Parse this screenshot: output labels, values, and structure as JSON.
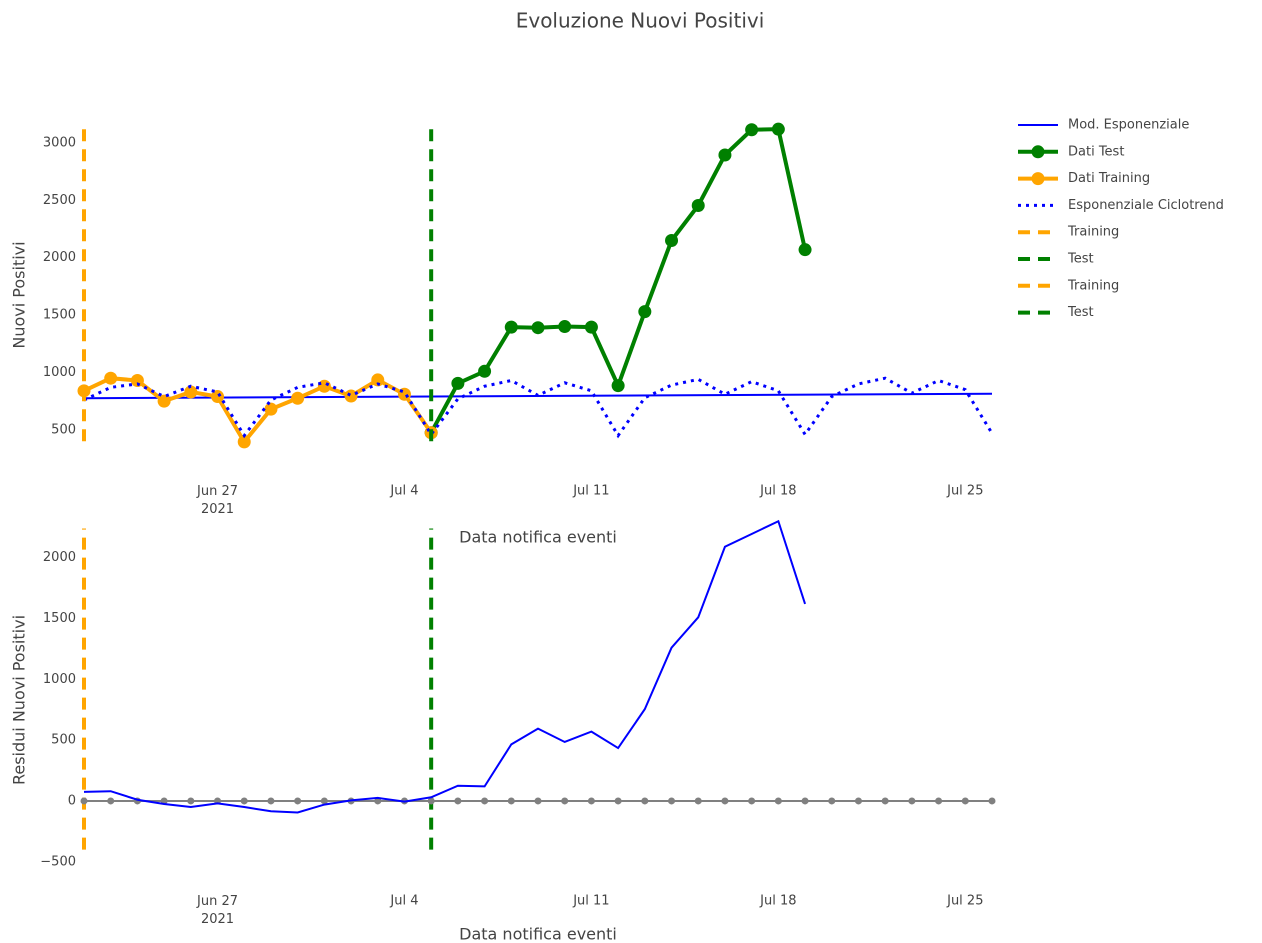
{
  "chart_data": [
    {
      "type": "line",
      "title": "Evoluzione Nuovi Positivi",
      "y_label": "Nuovi Positivi",
      "x_label": "Data notifica eventi",
      "xlim": [
        "2021-06-22",
        "2021-07-26"
      ],
      "xticks": [
        {
          "value": "2021-06-27",
          "label": "Jun 27\n2021"
        },
        {
          "value": "2021-07-04",
          "label": "Jul 4"
        },
        {
          "value": "2021-07-11",
          "label": "Jul 11"
        },
        {
          "value": "2021-07-18",
          "label": "Jul 18"
        },
        {
          "value": "2021-07-25",
          "label": "Jul 25"
        }
      ],
      "ylim": [
        150,
        3200
      ],
      "yticks": [
        500,
        1000,
        1500,
        2000,
        2500,
        3000
      ],
      "grid": false,
      "legend": "right",
      "series": [
        {
          "name": "Mod. Esponenziale",
          "color": "#0000ff",
          "mode": "lines",
          "dash": "solid",
          "x": [
            "2021-06-22",
            "2021-07-26"
          ],
          "values": [
            775,
            815
          ]
        },
        {
          "name": "Dati Test",
          "color": "#008000",
          "mode": "lines+markers",
          "dash": "solid",
          "x": [
            "2021-07-05",
            "2021-07-06",
            "2021-07-07",
            "2021-07-08",
            "2021-07-09",
            "2021-07-10",
            "2021-07-11",
            "2021-07-12",
            "2021-07-13",
            "2021-07-14",
            "2021-07-15",
            "2021-07-16",
            "2021-07-17",
            "2021-07-18",
            "2021-07-19"
          ],
          "values": [
            475,
            905,
            1010,
            1395,
            1390,
            1400,
            1395,
            885,
            1530,
            2150,
            2455,
            2895,
            3115,
            3120,
            2070
          ]
        },
        {
          "name": "Dati Training",
          "color": "#ffa500",
          "mode": "lines+markers",
          "dash": "solid",
          "x": [
            "2021-06-22",
            "2021-06-23",
            "2021-06-24",
            "2021-06-25",
            "2021-06-26",
            "2021-06-27",
            "2021-06-28",
            "2021-06-29",
            "2021-06-30",
            "2021-07-01",
            "2021-07-02",
            "2021-07-03",
            "2021-07-04",
            "2021-07-05"
          ],
          "values": [
            840,
            950,
            930,
            750,
            830,
            790,
            395,
            680,
            775,
            880,
            795,
            935,
            810,
            475
          ]
        },
        {
          "name": "Esponenziale Ciclotrend",
          "color": "#0000ff",
          "mode": "lines",
          "dash": "dot",
          "x": [
            "2021-06-22",
            "2021-06-23",
            "2021-06-24",
            "2021-06-25",
            "2021-06-26",
            "2021-06-27",
            "2021-06-28",
            "2021-06-29",
            "2021-06-30",
            "2021-07-01",
            "2021-07-02",
            "2021-07-03",
            "2021-07-04",
            "2021-07-05",
            "2021-07-06",
            "2021-07-07",
            "2021-07-08",
            "2021-07-09",
            "2021-07-10",
            "2021-07-11",
            "2021-07-12",
            "2021-07-13",
            "2021-07-14",
            "2021-07-15",
            "2021-07-16",
            "2021-07-17",
            "2021-07-18",
            "2021-07-19",
            "2021-07-20",
            "2021-07-21",
            "2021-07-22",
            "2021-07-23",
            "2021-07-24",
            "2021-07-25",
            "2021-07-26"
          ],
          "values": [
            760,
            870,
            900,
            790,
            880,
            830,
            450,
            760,
            870,
            910,
            800,
            900,
            830,
            460,
            770,
            880,
            930,
            800,
            910,
            840,
            450,
            780,
            890,
            940,
            810,
            920,
            840,
            460,
            790,
            900,
            950,
            820,
            930,
            850,
            470
          ]
        },
        {
          "name": "Training",
          "color": "#ffa500",
          "mode": "lines",
          "dash": "dash",
          "x": [
            "2021-06-22",
            "2021-06-22"
          ],
          "values": [
            400,
            3130
          ]
        },
        {
          "name": "Test",
          "color": "#008000",
          "mode": "lines",
          "dash": "dash",
          "x": [
            "2021-07-05",
            "2021-07-05"
          ],
          "values": [
            400,
            3130
          ]
        }
      ]
    },
    {
      "type": "line",
      "y_label": "Residui Nuovi Positivi",
      "x_label": "Data notifica eventi",
      "xlim": [
        "2021-06-22",
        "2021-07-26"
      ],
      "xticks": [
        {
          "value": "2021-06-27",
          "label": "Jun 27\n2021"
        },
        {
          "value": "2021-07-04",
          "label": "Jul 4"
        },
        {
          "value": "2021-07-11",
          "label": "Jul 11"
        },
        {
          "value": "2021-07-18",
          "label": "Jul 18"
        },
        {
          "value": "2021-07-25",
          "label": "Jul 25"
        }
      ],
      "ylim": [
        -650,
        2310
      ],
      "yticks": [
        {
          "value": -500,
          "label": "−500"
        },
        0,
        500,
        1000,
        1500,
        2000
      ],
      "grid": false,
      "series": [
        {
          "name": "Training",
          "color": "#ffa500",
          "mode": "lines",
          "dash": "dash",
          "x": [
            "2021-06-22",
            "2021-06-22"
          ],
          "values": [
            -400,
            2240
          ]
        },
        {
          "name": "Test",
          "color": "#008000",
          "mode": "lines",
          "dash": "dash",
          "x": [
            "2021-07-05",
            "2021-07-05"
          ],
          "values": [
            -400,
            2240
          ]
        },
        {
          "color": "#808080",
          "mode": "lines+markers",
          "dash": "solid",
          "x": [
            "2021-06-22",
            "2021-06-23",
            "2021-06-24",
            "2021-06-25",
            "2021-06-26",
            "2021-06-27",
            "2021-06-28",
            "2021-06-29",
            "2021-06-30",
            "2021-07-01",
            "2021-07-02",
            "2021-07-03",
            "2021-07-04",
            "2021-07-05",
            "2021-07-06",
            "2021-07-07",
            "2021-07-08",
            "2021-07-09",
            "2021-07-10",
            "2021-07-11",
            "2021-07-12",
            "2021-07-13",
            "2021-07-14",
            "2021-07-15",
            "2021-07-16",
            "2021-07-17",
            "2021-07-18",
            "2021-07-19",
            "2021-07-20",
            "2021-07-21",
            "2021-07-22",
            "2021-07-23",
            "2021-07-24",
            "2021-07-25",
            "2021-07-26"
          ],
          "values": [
            0,
            0,
            0,
            0,
            0,
            0,
            0,
            0,
            0,
            0,
            0,
            0,
            0,
            0,
            0,
            0,
            0,
            0,
            0,
            0,
            0,
            0,
            0,
            0,
            0,
            0,
            0,
            0,
            0,
            0,
            0,
            0,
            0,
            0,
            0
          ]
        },
        {
          "color": "#0000ff",
          "mode": "lines",
          "dash": "solid",
          "x": [
            "2021-06-22",
            "2021-06-23",
            "2021-06-24",
            "2021-06-25",
            "2021-06-26",
            "2021-06-27",
            "2021-06-28",
            "2021-06-29",
            "2021-06-30",
            "2021-07-01",
            "2021-07-02",
            "2021-07-03",
            "2021-07-04",
            "2021-07-05",
            "2021-07-06",
            "2021-07-07",
            "2021-07-08",
            "2021-07-09",
            "2021-07-10",
            "2021-07-11",
            "2021-07-12",
            "2021-07-13",
            "2021-07-14",
            "2021-07-15",
            "2021-07-16",
            "2021-07-17",
            "2021-07-18",
            "2021-07-19"
          ],
          "values": [
            75,
            80,
            10,
            -25,
            -50,
            -20,
            -50,
            -85,
            -95,
            -30,
            5,
            25,
            -5,
            30,
            125,
            120,
            465,
            595,
            485,
            570,
            435,
            755,
            1260,
            1510,
            2090,
            2195,
            2300,
            1620
          ]
        }
      ]
    }
  ]
}
